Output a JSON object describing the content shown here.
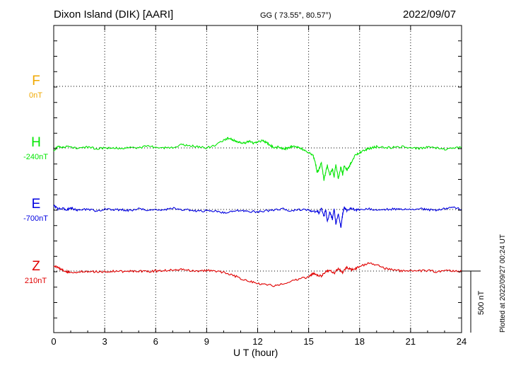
{
  "header": {
    "station": "Dixon Island (DIK)  [AARI]",
    "coords": "GG ( 73.55°,  80.57°)",
    "date": "2022/09/07"
  },
  "footer_note": "Plotted at 2022/09/27 00:24 UT",
  "scale_label": "500 nT",
  "colors": {
    "F": "#f0a800",
    "H": "#00e600",
    "E": "#0000e0",
    "Z": "#e00000"
  },
  "chart_data": {
    "type": "line",
    "xlabel": "U T (hour)",
    "xlim": [
      0,
      24
    ],
    "x_ticks": [
      "0",
      "3",
      "6",
      "9",
      "12",
      "15",
      "18",
      "21",
      "24"
    ],
    "grid": "dotted baselines",
    "scale_bar_nT": 500,
    "components": [
      {
        "key": "F",
        "name": "F",
        "baseline_label": "0nT",
        "color": "#f0a800",
        "values": []
      },
      {
        "key": "H",
        "name": "H",
        "baseline_label": "-240nT",
        "color": "#00e600",
        "x": [
          0,
          0.25,
          0.5,
          0.75,
          1,
          1.5,
          2,
          2.5,
          3,
          3.5,
          4,
          4.5,
          5,
          5.5,
          6,
          6.5,
          7,
          7.5,
          8,
          8.5,
          9,
          9.5,
          10,
          10.25,
          10.5,
          10.75,
          11,
          11.25,
          11.5,
          11.75,
          12,
          12.25,
          12.5,
          12.75,
          13,
          13.25,
          13.5,
          13.75,
          14,
          14.25,
          14.5,
          14.75,
          15,
          15.25,
          15.4,
          15.5,
          15.6,
          15.75,
          15.9,
          16,
          16.1,
          16.25,
          16.4,
          16.5,
          16.6,
          16.75,
          16.9,
          17,
          17.1,
          17.25,
          17.4,
          17.5,
          17.75,
          18,
          18.25,
          18.5,
          18.75,
          19,
          19.5,
          20,
          20.5,
          21,
          21.5,
          22,
          22.5,
          23,
          23.5,
          24
        ],
        "values": [
          -20,
          10,
          0,
          15,
          5,
          0,
          5,
          -5,
          0,
          5,
          -10,
          10,
          0,
          15,
          5,
          0,
          5,
          25,
          20,
          10,
          0,
          20,
          60,
          80,
          70,
          55,
          45,
          40,
          55,
          40,
          50,
          60,
          45,
          20,
          0,
          10,
          -10,
          0,
          10,
          5,
          0,
          -20,
          -40,
          -60,
          -120,
          -200,
          -180,
          -120,
          -260,
          -200,
          -140,
          -220,
          -170,
          -240,
          -130,
          -250,
          -150,
          -220,
          -140,
          -180,
          -150,
          -120,
          -60,
          -40,
          -20,
          -5,
          0,
          10,
          0,
          5,
          10,
          0,
          -5,
          5,
          0,
          -10,
          -5,
          5
        ]
      },
      {
        "key": "E",
        "name": "E",
        "baseline_label": "-700nT",
        "color": "#0000e0",
        "x": [
          0,
          0.25,
          0.5,
          0.75,
          1,
          1.25,
          1.5,
          2,
          2.5,
          3,
          3.5,
          4,
          4.5,
          5,
          5.5,
          6,
          6.5,
          7,
          7.5,
          8,
          8.5,
          9,
          9.5,
          10,
          10.5,
          11,
          11.5,
          12,
          12.5,
          13,
          13.5,
          14,
          14.5,
          15,
          15.25,
          15.5,
          15.6,
          15.75,
          15.9,
          16,
          16.1,
          16.25,
          16.4,
          16.5,
          16.6,
          16.75,
          16.9,
          17,
          17.1,
          17.25,
          17.5,
          17.75,
          18,
          18.5,
          19,
          19.5,
          20,
          20.5,
          21,
          21.5,
          22,
          22.5,
          23,
          23.5,
          24
        ],
        "values": [
          30,
          5,
          10,
          -5,
          15,
          0,
          -10,
          5,
          -15,
          5,
          -5,
          0,
          -10,
          5,
          -5,
          0,
          -5,
          10,
          0,
          -5,
          -15,
          -10,
          -15,
          -25,
          -20,
          -5,
          -15,
          -20,
          -10,
          -5,
          5,
          -10,
          0,
          -5,
          -20,
          -10,
          -30,
          10,
          -60,
          0,
          -100,
          -20,
          -80,
          10,
          -120,
          -30,
          -150,
          -40,
          20,
          -10,
          10,
          -5,
          0,
          5,
          -5,
          0,
          5,
          0,
          -5,
          5,
          0,
          -10,
          5,
          15,
          0
        ]
      },
      {
        "key": "Z",
        "name": "Z",
        "baseline_label": "210nT",
        "color": "#e00000",
        "x": [
          0,
          0.25,
          0.5,
          0.75,
          1,
          1.5,
          2,
          2.5,
          3,
          3.5,
          4,
          4.5,
          5,
          5.5,
          6,
          6.5,
          7,
          7.5,
          8,
          8.5,
          9,
          9.5,
          10,
          10.5,
          11,
          11.5,
          12,
          12.5,
          13,
          13.5,
          14,
          14.5,
          15,
          15.25,
          15.5,
          15.75,
          16,
          16.25,
          16.5,
          16.75,
          17,
          17.25,
          17.5,
          17.75,
          18,
          18.5,
          19,
          19.5,
          20,
          20.5,
          21,
          21.5,
          22,
          22.5,
          23,
          23.5,
          24
        ],
        "values": [
          40,
          30,
          10,
          -5,
          -10,
          -5,
          -8,
          -5,
          -5,
          0,
          -5,
          0,
          0,
          -2,
          0,
          5,
          10,
          15,
          5,
          0,
          5,
          0,
          -10,
          -30,
          -60,
          -80,
          -100,
          -110,
          -120,
          -100,
          -80,
          -60,
          -50,
          -20,
          -30,
          -40,
          -10,
          10,
          -20,
          20,
          -10,
          30,
          10,
          20,
          40,
          60,
          50,
          20,
          10,
          0,
          5,
          0,
          5,
          -5,
          5,
          0,
          -2
        ]
      }
    ]
  }
}
